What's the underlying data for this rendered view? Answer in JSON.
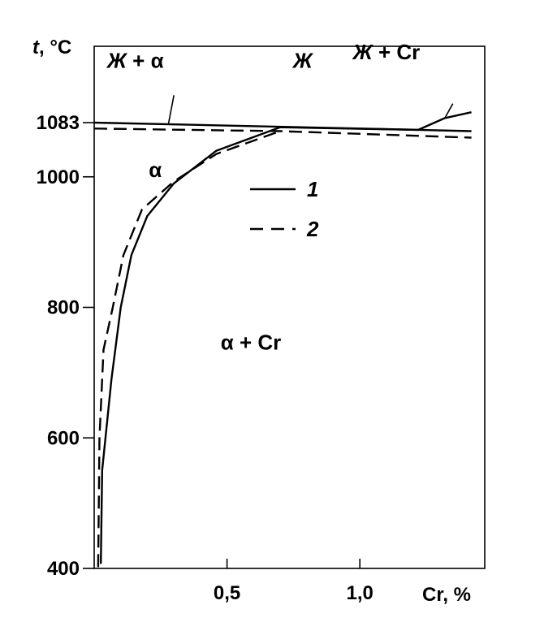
{
  "chart_data": {
    "type": "line",
    "title": "",
    "xlabel": "Cr, %",
    "ylabel_var": "t",
    "ylabel_unit": ", °C",
    "xlim": [
      0,
      1.47
    ],
    "ylim": [
      400,
      1200
    ],
    "x_ticks": [
      {
        "value": 0.5,
        "label": "0,5"
      },
      {
        "value": 1.0,
        "label": "1,0"
      }
    ],
    "y_ticks": [
      {
        "value": 400,
        "label": "400"
      },
      {
        "value": 600,
        "label": "600"
      },
      {
        "value": 800,
        "label": "800"
      },
      {
        "value": 1000,
        "label": "1000"
      },
      {
        "value": 1083,
        "label": "1083"
      }
    ],
    "series": [
      {
        "name": "1",
        "style": "solid",
        "lines": [
          [
            [
              0.0,
              1083
            ],
            [
              1.22,
              1072
            ],
            [
              1.42,
              1070
            ]
          ],
          [
            [
              0.025,
              407
            ],
            [
              0.03,
              550
            ],
            [
              0.065,
              690
            ],
            [
              0.1,
              800
            ],
            [
              0.14,
              880
            ],
            [
              0.2,
              940
            ],
            [
              0.3,
              990
            ],
            [
              0.46,
              1040
            ],
            [
              0.7,
              1076
            ],
            [
              1.22,
              1072
            ]
          ],
          [
            [
              1.22,
              1072
            ],
            [
              1.32,
              1090
            ],
            [
              1.42,
              1099
            ]
          ]
        ]
      },
      {
        "name": "2",
        "style": "dashed",
        "lines": [
          [
            [
              0.0,
              1074
            ],
            [
              0.7,
              1070
            ],
            [
              1.42,
              1060
            ]
          ],
          [
            [
              0.015,
              402
            ],
            [
              0.02,
              600
            ],
            [
              0.035,
              735
            ],
            [
              0.07,
              800
            ],
            [
              0.11,
              880
            ],
            [
              0.18,
              950
            ],
            [
              0.3,
              993
            ],
            [
              0.46,
              1035
            ],
            [
              0.7,
              1070
            ]
          ]
        ]
      }
    ],
    "regions": [
      {
        "text": "Ж + α",
        "x": 0.155,
        "y": 1167,
        "italic_part": "Ж"
      },
      {
        "text": "Ж",
        "x": 0.785,
        "y": 1167,
        "italic_part": "Ж"
      },
      {
        "text": "Ж + Cr",
        "x": 1.1,
        "y": 1180,
        "italic_part": "Ж"
      },
      {
        "text": "α",
        "x": 0.23,
        "y": 1000,
        "italic_part": ""
      },
      {
        "text": "α + Cr",
        "x": 0.59,
        "y": 735,
        "italic_part": ""
      }
    ],
    "leaders": [
      [
        [
          0.28,
          1082
        ],
        [
          0.3,
          1125
        ]
      ],
      [
        [
          1.32,
          1090
        ],
        [
          1.35,
          1112
        ]
      ]
    ],
    "legend": [
      {
        "label": "1",
        "style": "solid"
      },
      {
        "label": "2",
        "style": "dashed"
      }
    ],
    "legend_position": "center"
  }
}
